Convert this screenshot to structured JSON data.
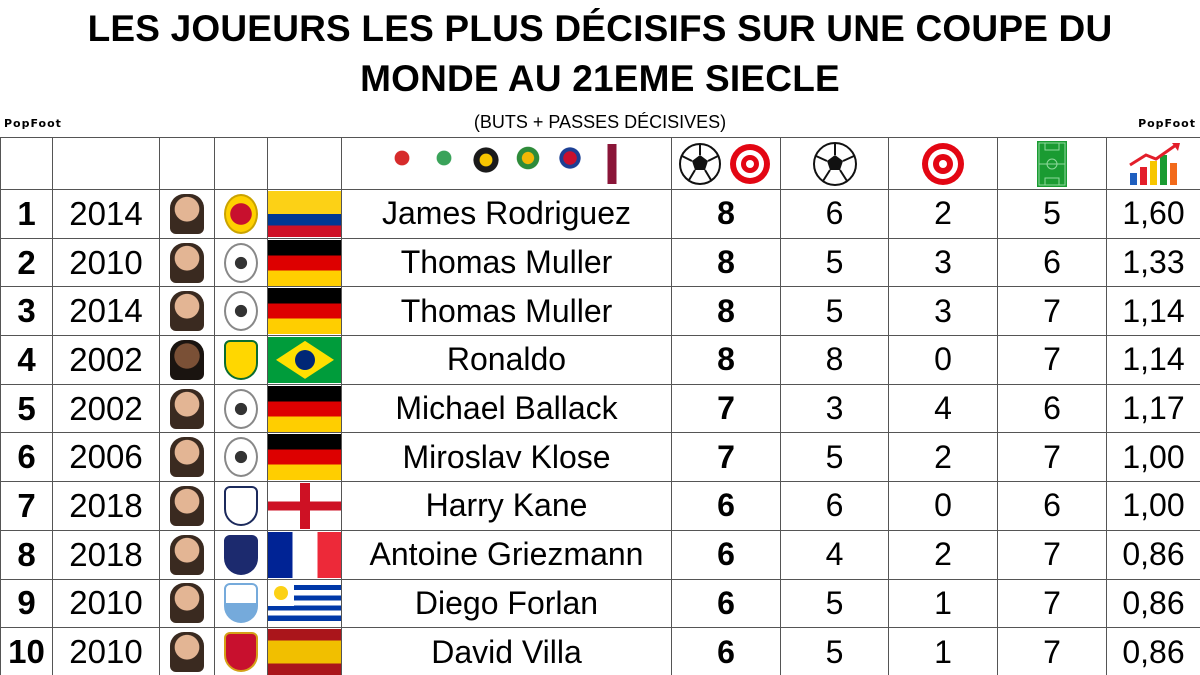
{
  "title_line1": "LES JOUEURS LES PLUS DÉCISIFS SUR UNE COUPE DU",
  "title_line2": "MONDE AU 21EME SIECLE",
  "subtitle": "(BUTS + PASSES DÉCISIVES)",
  "brand": "PopFoot",
  "header_icons": {
    "tournaments": "world-cup-logos-2002-2022",
    "total": "ball-and-target-icon",
    "goals": "soccer-ball-icon",
    "assists": "target-icon",
    "matches": "pitch-icon",
    "ratio": "bar-chart-growth-icon"
  },
  "colors": {
    "target_red": "#e30613",
    "pitch_green": "#1a9b32",
    "grid": "#555555"
  },
  "rows": [
    {
      "rank": "1",
      "year": "2014",
      "country": "colombia",
      "player": "James Rodriguez",
      "total": "8",
      "goals": "6",
      "assists": "2",
      "matches": "5",
      "ratio": "1,60"
    },
    {
      "rank": "2",
      "year": "2010",
      "country": "germany",
      "player": "Thomas Muller",
      "total": "8",
      "goals": "5",
      "assists": "3",
      "matches": "6",
      "ratio": "1,33"
    },
    {
      "rank": "3",
      "year": "2014",
      "country": "germany",
      "player": "Thomas Muller",
      "total": "8",
      "goals": "5",
      "assists": "3",
      "matches": "7",
      "ratio": "1,14"
    },
    {
      "rank": "4",
      "year": "2002",
      "country": "brazil",
      "player": "Ronaldo",
      "total": "8",
      "goals": "8",
      "assists": "0",
      "matches": "7",
      "ratio": "1,14"
    },
    {
      "rank": "5",
      "year": "2002",
      "country": "germany",
      "player": "Michael Ballack",
      "total": "7",
      "goals": "3",
      "assists": "4",
      "matches": "6",
      "ratio": "1,17"
    },
    {
      "rank": "6",
      "year": "2006",
      "country": "germany",
      "player": "Miroslav Klose",
      "total": "7",
      "goals": "5",
      "assists": "2",
      "matches": "7",
      "ratio": "1,00"
    },
    {
      "rank": "7",
      "year": "2018",
      "country": "england",
      "player": "Harry Kane",
      "total": "6",
      "goals": "6",
      "assists": "0",
      "matches": "6",
      "ratio": "1,00"
    },
    {
      "rank": "8",
      "year": "2018",
      "country": "france",
      "player": "Antoine Griezmann",
      "total": "6",
      "goals": "4",
      "assists": "2",
      "matches": "7",
      "ratio": "0,86"
    },
    {
      "rank": "9",
      "year": "2010",
      "country": "uruguay",
      "player": "Diego Forlan",
      "total": "6",
      "goals": "5",
      "assists": "1",
      "matches": "7",
      "ratio": "0,86"
    },
    {
      "rank": "10",
      "year": "2010",
      "country": "spain",
      "player": "David Villa",
      "total": "6",
      "goals": "5",
      "assists": "1",
      "matches": "7",
      "ratio": "0,86"
    }
  ]
}
